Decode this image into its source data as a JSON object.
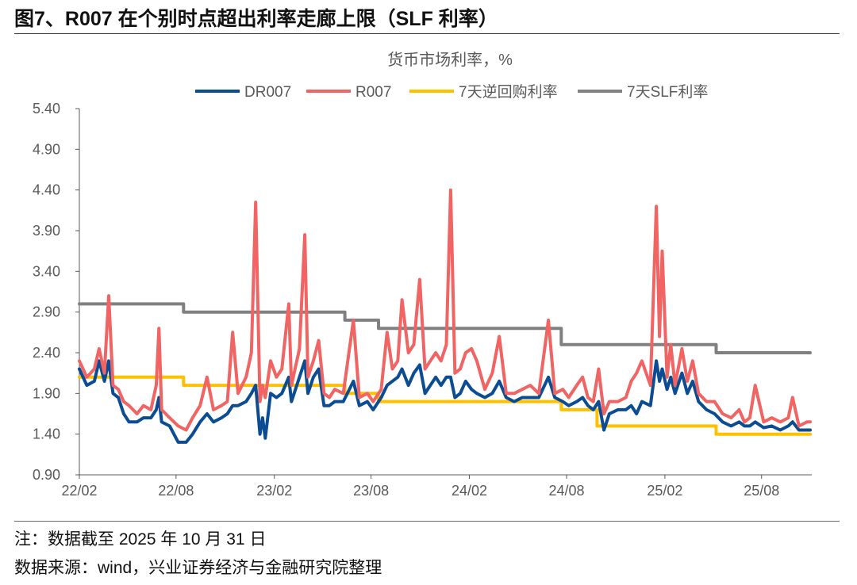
{
  "title": "图7、R007 在个别时点超出利率走廊上限（SLF 利率）",
  "notes": [
    "注：数据截至 2025 年 10 月 31 日",
    "数据来源：wind，兴业证券经济与金融研究院整理"
  ],
  "chart_data": {
    "type": "line",
    "title": "货币市场利率，%",
    "xlabel": "",
    "ylabel": "",
    "ylim": [
      0.9,
      5.4
    ],
    "yticks": [
      "0.90",
      "1.40",
      "1.90",
      "2.40",
      "2.90",
      "3.40",
      "3.90",
      "4.40",
      "4.90",
      "5.40"
    ],
    "xlim": [
      "2022-02-01",
      "2025-10-31"
    ],
    "xticks": [
      {
        "label": "22/02",
        "date": "2022-02-01"
      },
      {
        "label": "22/08",
        "date": "2022-08-01"
      },
      {
        "label": "23/02",
        "date": "2023-02-01"
      },
      {
        "label": "23/08",
        "date": "2023-08-01"
      },
      {
        "label": "24/02",
        "date": "2024-02-01"
      },
      {
        "label": "24/08",
        "date": "2024-08-01"
      },
      {
        "label": "25/02",
        "date": "2025-02-01"
      },
      {
        "label": "25/08",
        "date": "2025-08-01"
      }
    ],
    "grid": false,
    "legend": "top",
    "series": [
      {
        "name": "DR007",
        "color": "#0b4c93",
        "step": false,
        "points": [
          [
            "2022-02-01",
            2.2
          ],
          [
            "2022-02-15",
            2.0
          ],
          [
            "2022-03-01",
            2.05
          ],
          [
            "2022-03-10",
            2.3
          ],
          [
            "2022-03-20",
            2.05
          ],
          [
            "2022-03-28",
            2.3
          ],
          [
            "2022-04-05",
            1.9
          ],
          [
            "2022-04-15",
            1.85
          ],
          [
            "2022-04-25",
            1.65
          ],
          [
            "2022-05-05",
            1.55
          ],
          [
            "2022-05-20",
            1.55
          ],
          [
            "2022-06-01",
            1.6
          ],
          [
            "2022-06-15",
            1.6
          ],
          [
            "2022-06-25",
            1.7
          ],
          [
            "2022-06-30",
            1.85
          ],
          [
            "2022-07-05",
            1.55
          ],
          [
            "2022-07-20",
            1.5
          ],
          [
            "2022-08-05",
            1.3
          ],
          [
            "2022-08-20",
            1.3
          ],
          [
            "2022-09-01",
            1.4
          ],
          [
            "2022-09-15",
            1.55
          ],
          [
            "2022-09-28",
            1.65
          ],
          [
            "2022-10-10",
            1.55
          ],
          [
            "2022-10-25",
            1.6
          ],
          [
            "2022-11-05",
            1.65
          ],
          [
            "2022-11-15",
            1.75
          ],
          [
            "2022-11-25",
            1.75
          ],
          [
            "2022-12-10",
            1.8
          ],
          [
            "2022-12-20",
            1.9
          ],
          [
            "2022-12-28",
            2.0
          ],
          [
            "2023-01-05",
            1.4
          ],
          [
            "2023-01-10",
            1.6
          ],
          [
            "2023-01-15",
            1.35
          ],
          [
            "2023-01-25",
            1.9
          ],
          [
            "2023-02-05",
            1.85
          ],
          [
            "2023-02-15",
            1.9
          ],
          [
            "2023-02-28",
            2.1
          ],
          [
            "2023-03-05",
            1.8
          ],
          [
            "2023-03-20",
            2.1
          ],
          [
            "2023-03-30",
            2.3
          ],
          [
            "2023-04-05",
            1.9
          ],
          [
            "2023-04-15",
            2.1
          ],
          [
            "2023-04-25",
            2.2
          ],
          [
            "2023-05-05",
            1.75
          ],
          [
            "2023-05-15",
            1.75
          ],
          [
            "2023-05-25",
            1.8
          ],
          [
            "2023-06-10",
            1.8
          ],
          [
            "2023-06-29",
            2.05
          ],
          [
            "2023-07-10",
            1.75
          ],
          [
            "2023-07-25",
            1.8
          ],
          [
            "2023-08-05",
            1.7
          ],
          [
            "2023-08-20",
            1.85
          ],
          [
            "2023-08-31",
            2.0
          ],
          [
            "2023-09-10",
            2.05
          ],
          [
            "2023-09-20",
            2.1
          ],
          [
            "2023-09-28",
            2.2
          ],
          [
            "2023-10-10",
            2.0
          ],
          [
            "2023-10-20",
            2.15
          ],
          [
            "2023-10-31",
            2.25
          ],
          [
            "2023-11-10",
            1.9
          ],
          [
            "2023-11-20",
            2.0
          ],
          [
            "2023-11-30",
            2.1
          ],
          [
            "2023-12-10",
            2.0
          ],
          [
            "2023-12-20",
            2.1
          ],
          [
            "2023-12-28",
            2.1
          ],
          [
            "2024-01-05",
            1.85
          ],
          [
            "2024-01-15",
            1.9
          ],
          [
            "2024-01-25",
            2.05
          ],
          [
            "2024-02-05",
            1.95
          ],
          [
            "2024-02-15",
            1.9
          ],
          [
            "2024-03-01",
            1.85
          ],
          [
            "2024-03-15",
            1.9
          ],
          [
            "2024-03-28",
            2.05
          ],
          [
            "2024-04-10",
            1.85
          ],
          [
            "2024-04-25",
            1.8
          ],
          [
            "2024-05-10",
            1.85
          ],
          [
            "2024-05-25",
            1.85
          ],
          [
            "2024-06-10",
            1.85
          ],
          [
            "2024-06-28",
            2.1
          ],
          [
            "2024-07-10",
            1.85
          ],
          [
            "2024-07-25",
            1.8
          ],
          [
            "2024-08-05",
            1.75
          ],
          [
            "2024-08-20",
            1.8
          ],
          [
            "2024-08-31",
            1.85
          ],
          [
            "2024-09-10",
            1.75
          ],
          [
            "2024-09-20",
            1.7
          ],
          [
            "2024-09-30",
            1.8
          ],
          [
            "2024-10-10",
            1.45
          ],
          [
            "2024-10-20",
            1.65
          ],
          [
            "2024-11-05",
            1.7
          ],
          [
            "2024-11-20",
            1.7
          ],
          [
            "2024-11-30",
            1.75
          ],
          [
            "2024-12-10",
            1.65
          ],
          [
            "2024-12-20",
            1.8
          ],
          [
            "2025-01-05",
            1.75
          ],
          [
            "2025-01-16",
            2.3
          ],
          [
            "2025-01-22",
            2.05
          ],
          [
            "2025-01-27",
            2.2
          ],
          [
            "2025-02-05",
            1.95
          ],
          [
            "2025-02-12",
            2.1
          ],
          [
            "2025-02-20",
            1.9
          ],
          [
            "2025-03-05",
            2.15
          ],
          [
            "2025-03-15",
            1.9
          ],
          [
            "2025-03-25",
            2.05
          ],
          [
            "2025-04-05",
            1.8
          ],
          [
            "2025-04-20",
            1.7
          ],
          [
            "2025-05-05",
            1.65
          ],
          [
            "2025-05-20",
            1.55
          ],
          [
            "2025-06-05",
            1.5
          ],
          [
            "2025-06-20",
            1.55
          ],
          [
            "2025-06-30",
            1.5
          ],
          [
            "2025-07-10",
            1.5
          ],
          [
            "2025-07-20",
            1.55
          ],
          [
            "2025-08-05",
            1.48
          ],
          [
            "2025-08-20",
            1.5
          ],
          [
            "2025-09-05",
            1.45
          ],
          [
            "2025-09-20",
            1.5
          ],
          [
            "2025-09-28",
            1.55
          ],
          [
            "2025-10-10",
            1.45
          ],
          [
            "2025-10-25",
            1.45
          ],
          [
            "2025-10-31",
            1.45
          ]
        ]
      },
      {
        "name": "R007",
        "color": "#f06464",
        "step": false,
        "points": [
          [
            "2022-02-01",
            2.3
          ],
          [
            "2022-02-15",
            2.1
          ],
          [
            "2022-03-01",
            2.2
          ],
          [
            "2022-03-10",
            2.45
          ],
          [
            "2022-03-20",
            2.15
          ],
          [
            "2022-03-28",
            3.1
          ],
          [
            "2022-04-05",
            2.0
          ],
          [
            "2022-04-15",
            1.95
          ],
          [
            "2022-04-25",
            1.8
          ],
          [
            "2022-05-05",
            1.75
          ],
          [
            "2022-05-20",
            1.65
          ],
          [
            "2022-06-01",
            1.75
          ],
          [
            "2022-06-15",
            1.7
          ],
          [
            "2022-06-25",
            2.0
          ],
          [
            "2022-06-30",
            2.7
          ],
          [
            "2022-07-05",
            1.7
          ],
          [
            "2022-07-20",
            1.6
          ],
          [
            "2022-08-05",
            1.5
          ],
          [
            "2022-08-20",
            1.45
          ],
          [
            "2022-09-01",
            1.6
          ],
          [
            "2022-09-15",
            1.75
          ],
          [
            "2022-09-28",
            2.1
          ],
          [
            "2022-10-10",
            1.7
          ],
          [
            "2022-10-25",
            1.75
          ],
          [
            "2022-11-05",
            1.8
          ],
          [
            "2022-11-15",
            2.65
          ],
          [
            "2022-11-25",
            1.9
          ],
          [
            "2022-12-10",
            2.1
          ],
          [
            "2022-12-20",
            2.4
          ],
          [
            "2022-12-28",
            4.25
          ],
          [
            "2023-01-05",
            1.8
          ],
          [
            "2023-01-10",
            2.0
          ],
          [
            "2023-01-15",
            1.85
          ],
          [
            "2023-01-25",
            2.3
          ],
          [
            "2023-02-05",
            2.1
          ],
          [
            "2023-02-15",
            2.2
          ],
          [
            "2023-02-28",
            3.0
          ],
          [
            "2023-03-05",
            2.0
          ],
          [
            "2023-03-20",
            2.45
          ],
          [
            "2023-03-30",
            3.85
          ],
          [
            "2023-04-05",
            2.1
          ],
          [
            "2023-04-15",
            2.3
          ],
          [
            "2023-04-25",
            2.55
          ],
          [
            "2023-05-05",
            1.9
          ],
          [
            "2023-05-15",
            1.85
          ],
          [
            "2023-05-25",
            1.95
          ],
          [
            "2023-06-10",
            1.9
          ],
          [
            "2023-06-29",
            2.8
          ],
          [
            "2023-07-10",
            1.85
          ],
          [
            "2023-07-25",
            1.9
          ],
          [
            "2023-08-05",
            1.8
          ],
          [
            "2023-08-20",
            1.95
          ],
          [
            "2023-08-31",
            2.65
          ],
          [
            "2023-09-10",
            2.2
          ],
          [
            "2023-09-20",
            2.3
          ],
          [
            "2023-09-28",
            3.05
          ],
          [
            "2023-10-10",
            2.4
          ],
          [
            "2023-10-20",
            2.5
          ],
          [
            "2023-10-31",
            3.3
          ],
          [
            "2023-11-10",
            2.2
          ],
          [
            "2023-11-20",
            2.3
          ],
          [
            "2023-11-30",
            2.4
          ],
          [
            "2023-12-10",
            2.3
          ],
          [
            "2023-12-20",
            2.5
          ],
          [
            "2023-12-28",
            4.4
          ],
          [
            "2024-01-05",
            2.15
          ],
          [
            "2024-01-15",
            2.2
          ],
          [
            "2024-01-25",
            2.4
          ],
          [
            "2024-02-05",
            2.45
          ],
          [
            "2024-02-15",
            2.3
          ],
          [
            "2024-03-01",
            1.95
          ],
          [
            "2024-03-15",
            2.15
          ],
          [
            "2024-03-28",
            2.6
          ],
          [
            "2024-04-10",
            1.9
          ],
          [
            "2024-04-25",
            1.9
          ],
          [
            "2024-05-10",
            1.95
          ],
          [
            "2024-05-25",
            2.0
          ],
          [
            "2024-06-10",
            1.9
          ],
          [
            "2024-06-28",
            2.8
          ],
          [
            "2024-07-10",
            1.9
          ],
          [
            "2024-07-25",
            1.95
          ],
          [
            "2024-08-05",
            1.85
          ],
          [
            "2024-08-20",
            2.0
          ],
          [
            "2024-08-31",
            2.1
          ],
          [
            "2024-09-10",
            1.85
          ],
          [
            "2024-09-20",
            1.8
          ],
          [
            "2024-09-30",
            2.2
          ],
          [
            "2024-10-10",
            1.65
          ],
          [
            "2024-10-20",
            1.8
          ],
          [
            "2024-11-05",
            1.8
          ],
          [
            "2024-11-20",
            1.85
          ],
          [
            "2024-11-30",
            2.05
          ],
          [
            "2024-12-10",
            2.15
          ],
          [
            "2024-12-20",
            2.3
          ],
          [
            "2025-01-05",
            2.0
          ],
          [
            "2025-01-16",
            4.2
          ],
          [
            "2025-01-22",
            2.6
          ],
          [
            "2025-01-27",
            3.65
          ],
          [
            "2025-02-05",
            2.1
          ],
          [
            "2025-02-12",
            2.5
          ],
          [
            "2025-02-20",
            2.0
          ],
          [
            "2025-03-05",
            2.45
          ],
          [
            "2025-03-15",
            2.05
          ],
          [
            "2025-03-25",
            2.3
          ],
          [
            "2025-04-05",
            1.9
          ],
          [
            "2025-04-20",
            1.8
          ],
          [
            "2025-05-05",
            1.8
          ],
          [
            "2025-05-20",
            1.65
          ],
          [
            "2025-06-05",
            1.6
          ],
          [
            "2025-06-20",
            1.7
          ],
          [
            "2025-06-30",
            1.55
          ],
          [
            "2025-07-10",
            1.6
          ],
          [
            "2025-07-20",
            2.0
          ],
          [
            "2025-08-05",
            1.55
          ],
          [
            "2025-08-20",
            1.6
          ],
          [
            "2025-09-05",
            1.55
          ],
          [
            "2025-09-20",
            1.6
          ],
          [
            "2025-09-28",
            1.85
          ],
          [
            "2025-10-10",
            1.5
          ],
          [
            "2025-10-25",
            1.55
          ],
          [
            "2025-10-31",
            1.55
          ]
        ]
      },
      {
        "name": "7天逆回购利率",
        "color": "#ffc000",
        "step": true,
        "points": [
          [
            "2022-02-01",
            2.1
          ],
          [
            "2022-08-15",
            2.0
          ],
          [
            "2023-06-13",
            1.9
          ],
          [
            "2023-08-15",
            1.8
          ],
          [
            "2024-07-22",
            1.7
          ],
          [
            "2024-09-27",
            1.5
          ],
          [
            "2025-05-08",
            1.4
          ],
          [
            "2025-10-31",
            1.4
          ]
        ]
      },
      {
        "name": "7天SLF利率",
        "color": "#808080",
        "step": true,
        "points": [
          [
            "2022-02-01",
            3.0
          ],
          [
            "2022-08-15",
            2.9
          ],
          [
            "2023-06-13",
            2.8
          ],
          [
            "2023-08-15",
            2.7
          ],
          [
            "2024-07-22",
            2.5
          ],
          [
            "2025-05-08",
            2.4
          ],
          [
            "2025-10-31",
            2.4
          ]
        ]
      }
    ]
  }
}
